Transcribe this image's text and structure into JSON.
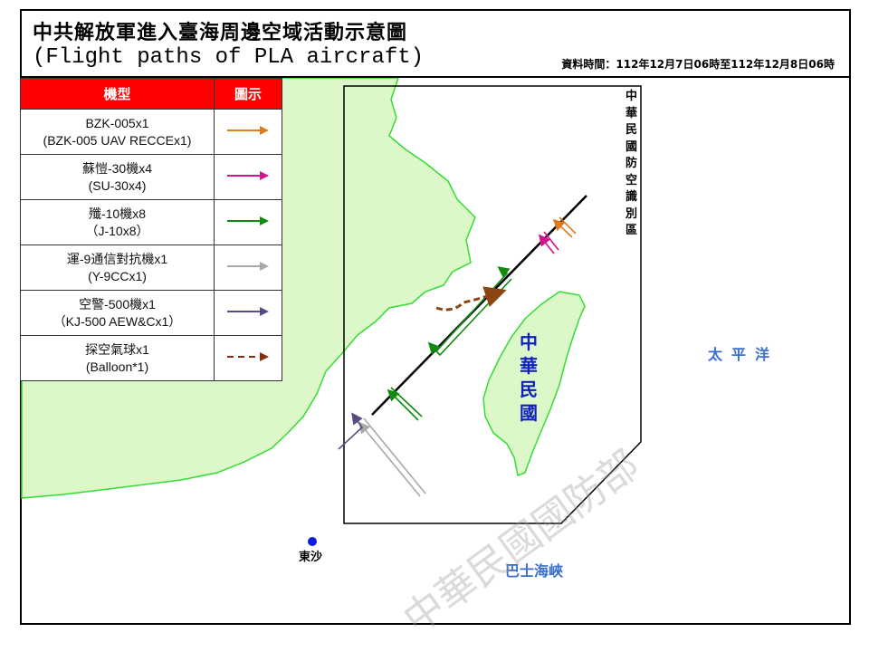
{
  "header": {
    "title_cn": "中共解放軍進入臺海周邊空域活動示意圖",
    "title_en": "(Flight paths of PLA aircraft)",
    "period": "資料時間：112年12月7日06時至112年12月8日06時"
  },
  "legend": {
    "col_type": "機型",
    "col_symbol": "圖示",
    "rows": [
      {
        "line1": "BZK-005x1",
        "line2": "(BZK-005 UAV RECCEx1)",
        "color": "#e07b20",
        "style": "solid"
      },
      {
        "line1": "蘇愷-30機x4",
        "line2": "(SU-30x4)",
        "color": "#d0148c",
        "style": "solid"
      },
      {
        "line1": "殲-10機x8",
        "line2": "（J-10x8）",
        "color": "#108a10",
        "style": "solid"
      },
      {
        "line1": "運-9通信對抗機x1",
        "line2": "(Y-9CCx1)",
        "color": "#a8a8a8",
        "style": "solid"
      },
      {
        "line1": "空警-500機x1",
        "line2": "（KJ-500 AEW&Cx1）",
        "color": "#5a4a80",
        "style": "solid"
      },
      {
        "line1": "探空氣球x1",
        "line2": "(Balloon*1)",
        "color": "#8b2c10",
        "style": "dashed"
      }
    ]
  },
  "map": {
    "adiz_label": "中華民國防空識別區",
    "taiwan_label": "中華民國",
    "pacific_label": "太平洋",
    "bashi_label": "巴士海峽",
    "dongsha_label": "東沙",
    "watermark": "中華民國國防部",
    "land_color": "#ddf8c8",
    "coast_color": "#33dd33"
  }
}
